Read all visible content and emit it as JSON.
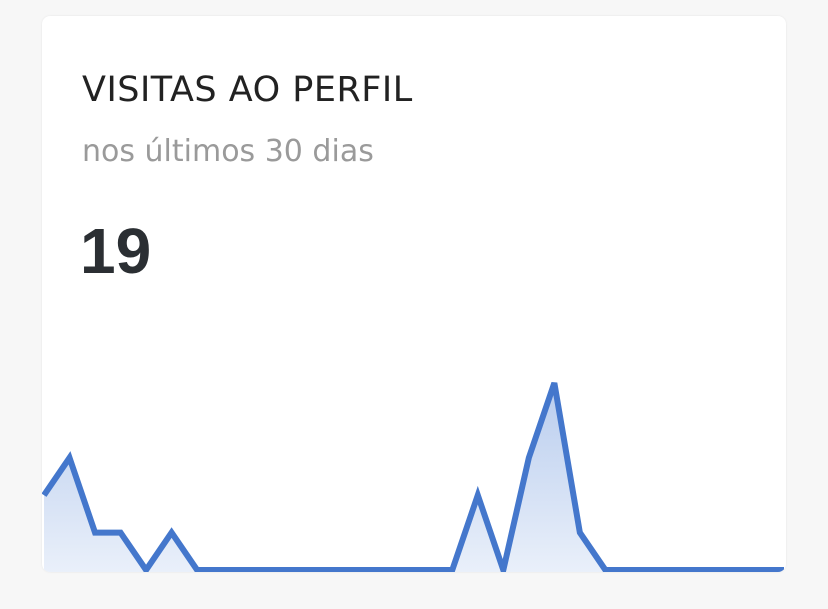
{
  "card": {
    "title": "VISITAS AO PERFIL",
    "subtitle": "nos últimos 30 dias",
    "total": "19"
  },
  "chart_data": {
    "type": "area",
    "values": [
      2,
      3,
      1,
      1,
      0,
      1,
      0,
      0,
      0,
      0,
      0,
      0,
      0,
      0,
      0,
      0,
      0,
      2,
      0,
      3,
      5,
      1,
      0,
      0,
      0,
      0,
      0,
      0,
      0,
      0
    ],
    "ylim": [
      0,
      5
    ],
    "grid": false,
    "line_color": "#4477cc",
    "fill_color": "#c9d8f1"
  }
}
